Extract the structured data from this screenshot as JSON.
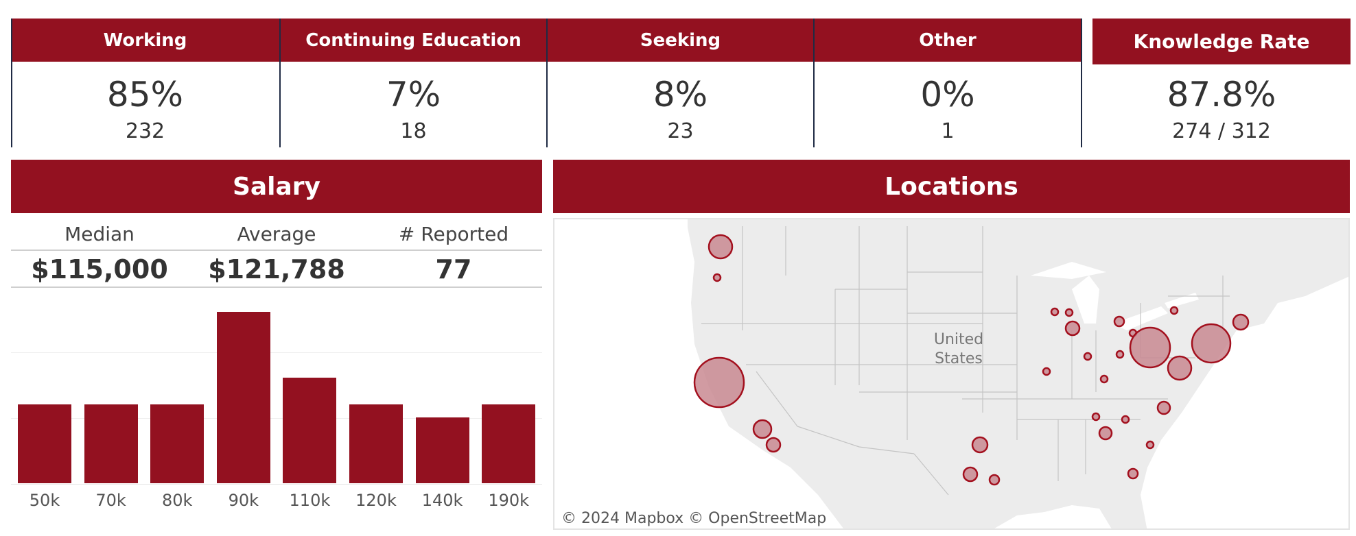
{
  "kpis": [
    {
      "label": "Working",
      "percent": "85%",
      "count": "232"
    },
    {
      "label": "Continuing Education",
      "percent": "7%",
      "count": "18"
    },
    {
      "label": "Seeking",
      "percent": "8%",
      "count": "23"
    },
    {
      "label": "Other",
      "percent": "0%",
      "count": "1"
    }
  ],
  "knowledge_rate": {
    "label": "Knowledge Rate",
    "percent": "87.8%",
    "ratio": "274 / 312"
  },
  "salary": {
    "title": "Salary",
    "stats": [
      {
        "label": "Median",
        "value": "$115,000"
      },
      {
        "label": "Average",
        "value": "$121,788"
      },
      {
        "label": "# Reported",
        "value": "77"
      }
    ]
  },
  "locations": {
    "title": "Locations",
    "country_label_1": "United",
    "country_label_2": "States",
    "attribution": "© 2024 Mapbox  © OpenStreetMap"
  },
  "colors": {
    "brand_red": "#931120",
    "divider_navy": "#1f2a44",
    "map_land": "#ececec",
    "bubble_fill": "#c98a92",
    "bubble_stroke": "#a3101e"
  },
  "chart_data": {
    "type": "bar",
    "title": "Salary",
    "categories": [
      "50k",
      "70k",
      "80k",
      "90k",
      "110k",
      "120k",
      "140k",
      "190k"
    ],
    "values": [
      6,
      6,
      6,
      13,
      8,
      6,
      5,
      6
    ],
    "xlabel": "",
    "ylabel": "",
    "ylim": [
      0,
      14
    ],
    "grid": true,
    "gridlines": [
      5,
      10
    ]
  }
}
